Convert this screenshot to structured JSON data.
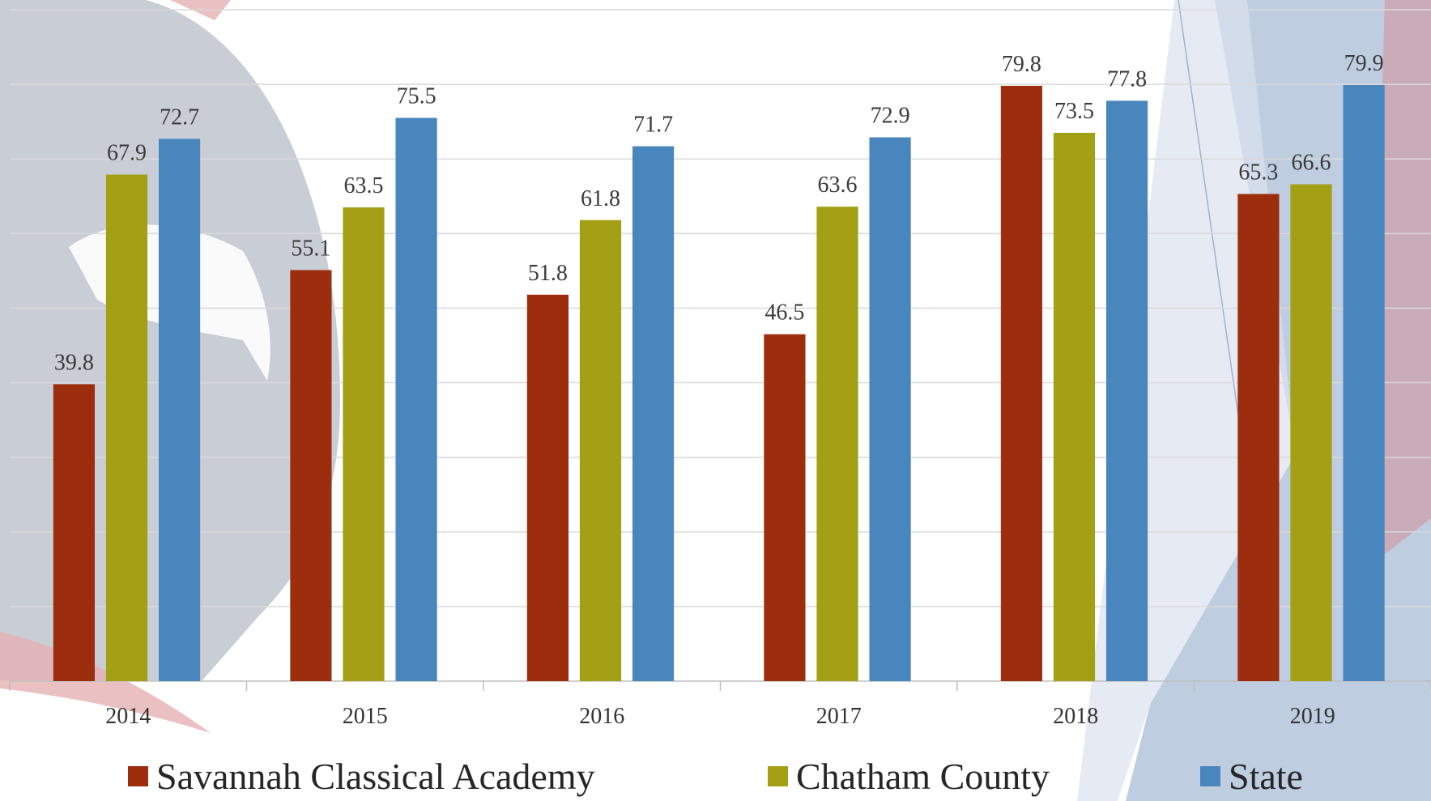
{
  "chart_data": {
    "type": "bar",
    "categories": [
      "2014",
      "2015",
      "2016",
      "2017",
      "2018",
      "2019"
    ],
    "series": [
      {
        "name": "Savannah Classical Academy",
        "color": "#9c2e0e",
        "values": [
          39.8,
          55.1,
          51.8,
          46.5,
          79.8,
          65.3
        ]
      },
      {
        "name": "Chatham County",
        "color": "#a3a016",
        "values": [
          67.9,
          63.5,
          61.8,
          63.6,
          73.5,
          66.6
        ]
      },
      {
        "name": "State",
        "color": "#4a86be",
        "values": [
          72.7,
          75.5,
          71.7,
          72.9,
          77.8,
          79.9
        ]
      }
    ],
    "ylim": [
      0,
      90
    ],
    "grid": true,
    "legend_position": "bottom",
    "title": "",
    "xlabel": "",
    "ylabel": ""
  },
  "legend": {
    "items": [
      {
        "label": "Savannah Classical Academy",
        "color": "#9c2e0e"
      },
      {
        "label": "Chatham County",
        "color": "#a3a016"
      },
      {
        "label": "State",
        "color": "#4a86be"
      }
    ]
  },
  "colors": {
    "background_gray": "#c3c8d1",
    "background_red": "#e6b0b3",
    "background_blue": "#a9bcd6"
  }
}
